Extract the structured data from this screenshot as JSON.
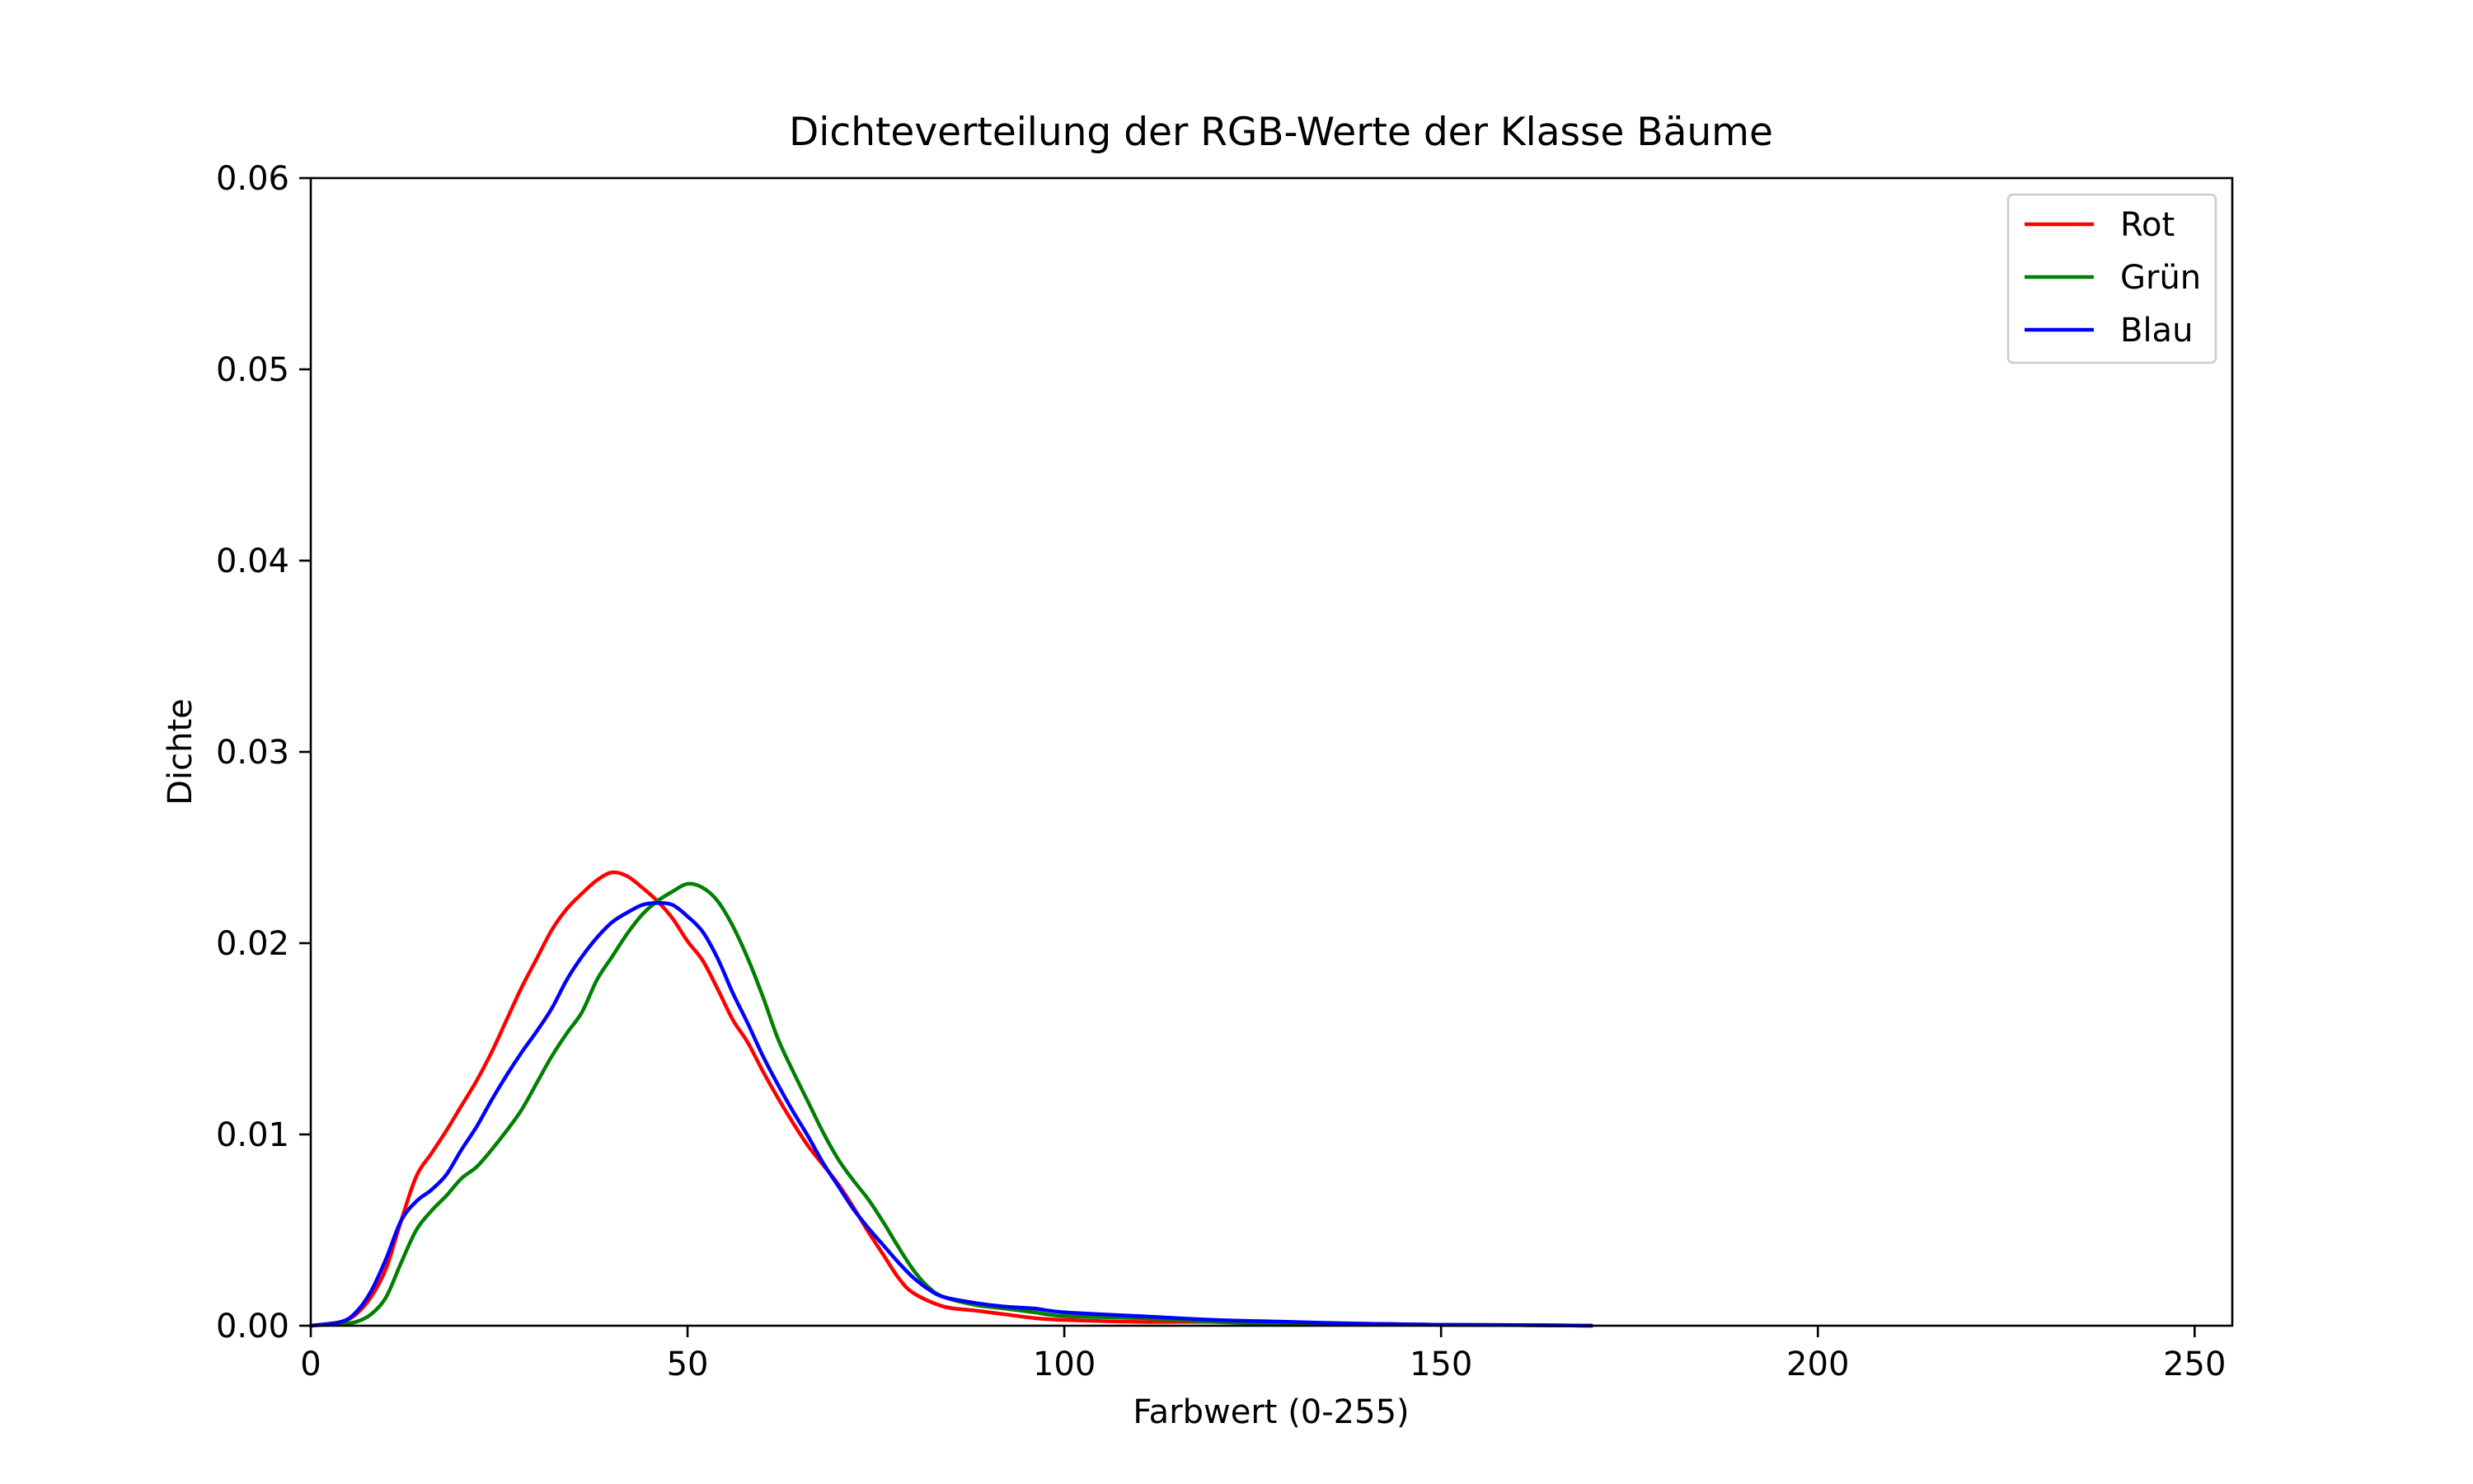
{
  "chart_data": {
    "type": "line",
    "title": "Dichteverteilung der RGB-Werte der Klasse Bäume",
    "xlabel": "Farbwert (0-255)",
    "ylabel": "Dichte",
    "xlim": [
      0,
      255
    ],
    "ylim": [
      0,
      0.06
    ],
    "xticks": [
      0,
      50,
      100,
      150,
      200,
      250
    ],
    "xtick_labels": [
      "0",
      "50",
      "100",
      "150",
      "200",
      "250"
    ],
    "yticks": [
      0,
      0.01,
      0.02,
      0.03,
      0.04,
      0.05,
      0.06
    ],
    "ytick_labels": [
      "0.00",
      "0.01",
      "0.02",
      "0.03",
      "0.04",
      "0.05",
      "0.06"
    ],
    "grid": false,
    "legend_position": "top-right",
    "series": [
      {
        "name": "Rot",
        "color": "#ff0000",
        "x": [
          0,
          4,
          6,
          8,
          10,
          12,
          14,
          16,
          18,
          20,
          22,
          24,
          26,
          28,
          30,
          32,
          34,
          36,
          38,
          40,
          42,
          44,
          46,
          48,
          50,
          52,
          54,
          56,
          58,
          60,
          62,
          64,
          66,
          68,
          70,
          72,
          74,
          76,
          78,
          80,
          84,
          88,
          92,
          96,
          100,
          110,
          120,
          130,
          140,
          150,
          160,
          170
        ],
        "y": [
          0,
          0.0002,
          0.0006,
          0.0015,
          0.003,
          0.0055,
          0.0078,
          0.009,
          0.0102,
          0.0115,
          0.0128,
          0.0143,
          0.016,
          0.0177,
          0.0192,
          0.0207,
          0.0218,
          0.0226,
          0.0233,
          0.0237,
          0.0235,
          0.0229,
          0.0222,
          0.0213,
          0.0201,
          0.0191,
          0.0176,
          0.016,
          0.0148,
          0.0133,
          0.0119,
          0.0106,
          0.0094,
          0.0084,
          0.0074,
          0.0062,
          0.0049,
          0.0037,
          0.0025,
          0.0017,
          0.001,
          0.0008,
          0.0006,
          0.0004,
          0.0003,
          0.0002,
          0.0002,
          0.0001,
          0.0001,
          5e-05,
          3e-05,
          0
        ]
      },
      {
        "name": "Grün",
        "color": "#008000",
        "x": [
          0,
          4,
          6,
          8,
          10,
          12,
          14,
          16,
          18,
          20,
          22,
          24,
          26,
          28,
          30,
          32,
          34,
          36,
          38,
          40,
          42,
          44,
          46,
          48,
          50,
          52,
          54,
          56,
          58,
          60,
          62,
          64,
          66,
          68,
          70,
          72,
          74,
          76,
          78,
          80,
          82,
          84,
          88,
          92,
          96,
          100,
          110,
          120,
          130,
          140,
          150,
          160,
          170
        ],
        "y": [
          0,
          0.0001,
          0.0002,
          0.0006,
          0.0015,
          0.0033,
          0.005,
          0.006,
          0.0068,
          0.0077,
          0.0083,
          0.0092,
          0.0102,
          0.0113,
          0.0127,
          0.0141,
          0.0153,
          0.0164,
          0.0181,
          0.0193,
          0.0205,
          0.0215,
          0.0222,
          0.0227,
          0.0231,
          0.0229,
          0.0222,
          0.0209,
          0.0192,
          0.0172,
          0.015,
          0.0133,
          0.0117,
          0.0101,
          0.0087,
          0.0076,
          0.0066,
          0.0054,
          0.0041,
          0.0029,
          0.002,
          0.0015,
          0.0011,
          0.0009,
          0.0007,
          0.0005,
          0.0004,
          0.0002,
          0.0001,
          0.0001,
          5e-05,
          3e-05,
          0
        ]
      },
      {
        "name": "Blau",
        "color": "#0000ff",
        "x": [
          0,
          4,
          6,
          8,
          10,
          12,
          14,
          16,
          18,
          20,
          22,
          24,
          26,
          28,
          30,
          32,
          34,
          36,
          38,
          40,
          42,
          44,
          46,
          48,
          50,
          52,
          54,
          56,
          58,
          60,
          62,
          64,
          66,
          68,
          70,
          72,
          74,
          76,
          78,
          80,
          82,
          84,
          88,
          92,
          96,
          100,
          110,
          120,
          130,
          140,
          150,
          160,
          170
        ],
        "y": [
          0,
          0.0002,
          0.0007,
          0.0018,
          0.0035,
          0.0055,
          0.0065,
          0.0071,
          0.0079,
          0.0092,
          0.0104,
          0.0118,
          0.0131,
          0.0143,
          0.0154,
          0.0166,
          0.0181,
          0.0193,
          0.0203,
          0.0211,
          0.0216,
          0.022,
          0.0221,
          0.022,
          0.0214,
          0.0206,
          0.0192,
          0.0174,
          0.0158,
          0.0141,
          0.0126,
          0.0112,
          0.0099,
          0.0085,
          0.0073,
          0.0061,
          0.0051,
          0.0042,
          0.0033,
          0.0025,
          0.0019,
          0.0015,
          0.0012,
          0.001,
          0.0009,
          0.0007,
          0.0005,
          0.0003,
          0.0002,
          0.0001,
          5e-05,
          3e-05,
          0
        ]
      }
    ]
  }
}
